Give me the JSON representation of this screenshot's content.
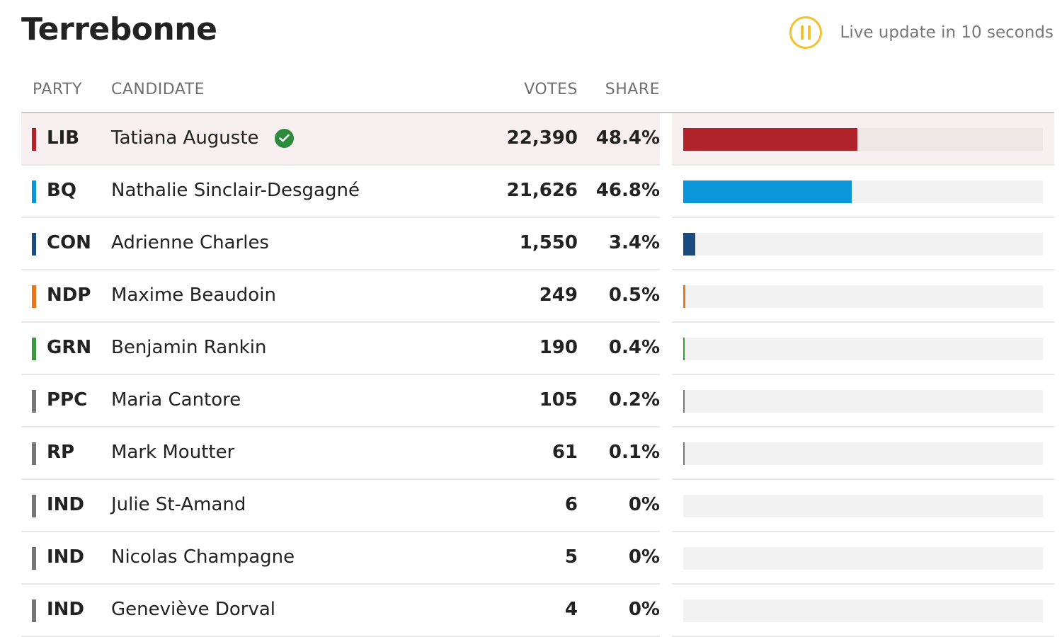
{
  "riding": {
    "name": "Terrebonne"
  },
  "live": {
    "text": "Live update in 10 seconds",
    "icon": "pause-icon",
    "color": "#f1c232"
  },
  "table": {
    "headers": {
      "party": "PARTY",
      "candidate": "CANDIDATE",
      "votes": "VOTES",
      "share": "SHARE"
    },
    "rows": [
      {
        "party": "LIB",
        "candidate": "Tatiana Auguste",
        "votes": "22,390",
        "share": "48.4%",
        "share_value": 48.4,
        "color": "#b0232b",
        "winner": true
      },
      {
        "party": "BQ",
        "candidate": "Nathalie Sinclair-Desgagné",
        "votes": "21,626",
        "share": "46.8%",
        "share_value": 46.8,
        "color": "#0a96d8",
        "winner": false
      },
      {
        "party": "CON",
        "candidate": "Adrienne Charles",
        "votes": "1,550",
        "share": "3.4%",
        "share_value": 3.4,
        "color": "#1b4c80",
        "winner": false
      },
      {
        "party": "NDP",
        "candidate": "Maxime Beaudoin",
        "votes": "249",
        "share": "0.5%",
        "share_value": 0.5,
        "color": "#e8771c",
        "winner": false
      },
      {
        "party": "GRN",
        "candidate": "Benjamin Rankin",
        "votes": "190",
        "share": "0.4%",
        "share_value": 0.4,
        "color": "#3b9a3d",
        "winner": false
      },
      {
        "party": "PPC",
        "candidate": "Maria Cantore",
        "votes": "105",
        "share": "0.2%",
        "share_value": 0.2,
        "color": "#777777",
        "winner": false
      },
      {
        "party": "RP",
        "candidate": "Mark Moutter",
        "votes": "61",
        "share": "0.1%",
        "share_value": 0.1,
        "color": "#777777",
        "winner": false
      },
      {
        "party": "IND",
        "candidate": "Julie St-Amand",
        "votes": "6",
        "share": "0%",
        "share_value": 0,
        "color": "#777777",
        "winner": false
      },
      {
        "party": "IND",
        "candidate": "Nicolas Champagne",
        "votes": "5",
        "share": "0%",
        "share_value": 0,
        "color": "#777777",
        "winner": false
      },
      {
        "party": "IND",
        "candidate": "Geneviève Dorval",
        "votes": "4",
        "share": "0%",
        "share_value": 0,
        "color": "#777777",
        "winner": false
      }
    ]
  }
}
